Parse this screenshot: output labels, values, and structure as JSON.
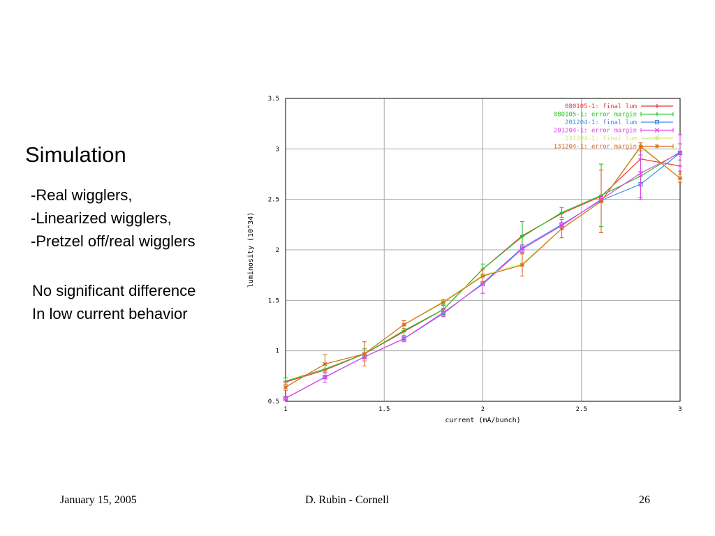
{
  "slide": {
    "title": "Simulation",
    "bullets": [
      "-Real wigglers,",
      "-Linearized wigglers,",
      "-Pretzel off/real wigglers"
    ],
    "note": [
      "No significant difference",
      "In low current behavior"
    ]
  },
  "footer": {
    "date": "January 15, 2005",
    "author": "D. Rubin - Cornell",
    "page": "26"
  },
  "chart_data": {
    "type": "line",
    "xlabel": "current (mA/bunch)",
    "ylabel": "luminosity (10^34)",
    "xlim": [
      1,
      3
    ],
    "ylim": [
      0.5,
      3.5
    ],
    "xticks": [
      "1",
      "1.5",
      "2",
      "2.5",
      "3"
    ],
    "yticks": [
      "0.5",
      "1",
      "1.5",
      "2",
      "2.5",
      "3",
      "3.5"
    ],
    "grid": true,
    "legend_position": "top-right",
    "x": [
      1.0,
      1.2,
      1.4,
      1.6,
      1.8,
      2.0,
      2.2,
      2.4,
      2.6,
      2.8,
      3.0
    ],
    "series": [
      {
        "name": "080105-1: final lum",
        "color": "#e8373a",
        "marker": "plus",
        "values": [
          0.69,
          0.81,
          0.97,
          1.19,
          1.41,
          1.81,
          2.14,
          2.36,
          2.53,
          2.9,
          2.83
        ]
      },
      {
        "name": "080105-1: error margin",
        "color": "#22c422",
        "marker": "errorbar",
        "values": [
          0.7,
          0.82,
          0.97,
          1.2,
          1.41,
          1.81,
          2.13,
          2.37,
          2.54,
          2.73,
          2.97
        ],
        "errors": [
          0.03,
          0.04,
          0.05,
          0.05,
          0.05,
          0.05,
          0.15,
          0.05,
          0.31,
          0.21,
          0.08
        ]
      },
      {
        "name": "201204-1: final lum",
        "color": "#3a8fe6",
        "marker": "square",
        "values": [
          0.53,
          0.74,
          0.94,
          1.12,
          1.37,
          1.67,
          2.02,
          2.25,
          2.49,
          2.65,
          2.96
        ]
      },
      {
        "name": "201204-1: error margin",
        "color": "#e040e8",
        "marker": "x-errorbar",
        "values": [
          0.53,
          0.74,
          0.94,
          1.12,
          1.38,
          1.66,
          2.01,
          2.24,
          2.5,
          2.76,
          2.96
        ],
        "errors": [
          0.02,
          0.05,
          0.04,
          0.03,
          0.04,
          0.09,
          0.04,
          0.03,
          0.03,
          0.26,
          0.18
        ]
      },
      {
        "name": "131204-1: final lum",
        "color": "#ccee66",
        "marker": "star",
        "values": [
          0.64,
          0.87,
          0.97,
          1.26,
          1.49,
          1.75,
          1.86,
          2.21,
          2.48,
          3.03,
          2.71
        ]
      },
      {
        "name": "131204-1: error margin",
        "color": "#d86a1e",
        "marker": "star-errorbar",
        "values": [
          0.64,
          0.87,
          0.97,
          1.26,
          1.48,
          1.74,
          1.85,
          2.21,
          2.48,
          3.02,
          2.71
        ],
        "errors": [
          0.03,
          0.09,
          0.12,
          0.04,
          0.03,
          0.07,
          0.11,
          0.09,
          0.31,
          0.04,
          0.04
        ]
      }
    ]
  }
}
